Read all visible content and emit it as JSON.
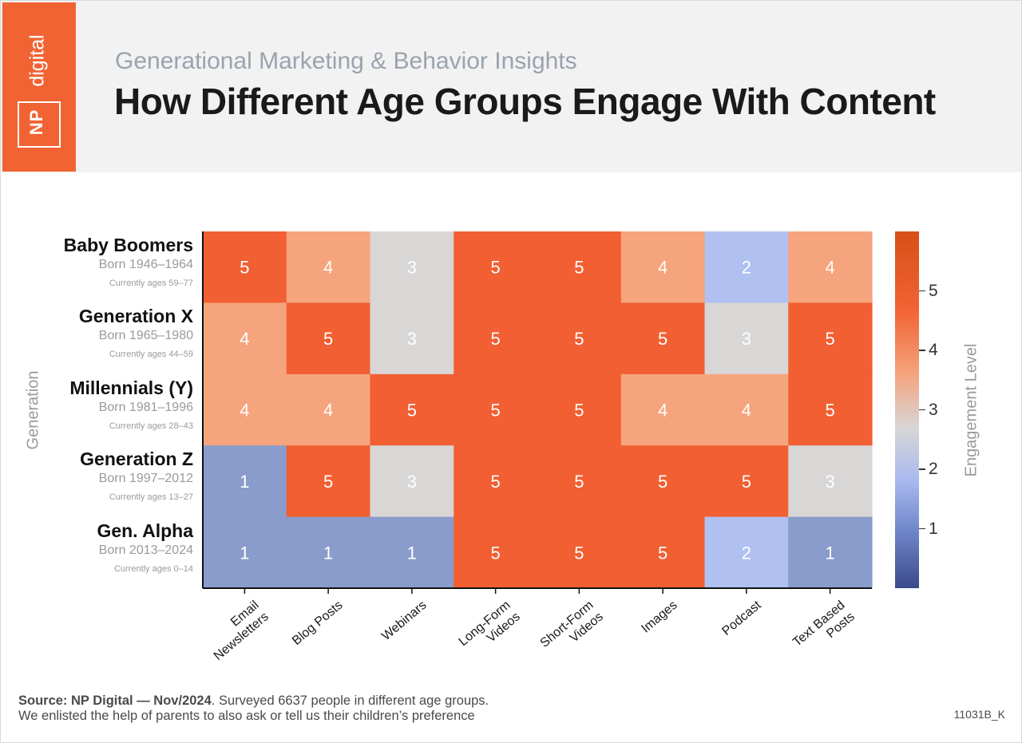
{
  "header": {
    "logo_np": "NP",
    "logo_digital": "digital",
    "subtitle": "Generational Marketing & Behavior Insights",
    "title": "How Different Age Groups Engage With Content"
  },
  "chart_data": {
    "type": "heatmap",
    "title": "How Different Age Groups Engage With Content",
    "ylabel": "Generation",
    "colorbar_label": "Engagement Level",
    "colorbar_ticks": [
      "1",
      "2",
      "3",
      "4",
      "5"
    ],
    "colorbar_range": [
      0,
      6
    ],
    "columns": [
      "Email Newsletters",
      "Blog Posts",
      "Webinars",
      "Long-Form Videos",
      "Short-Form Videos",
      "Images",
      "Podcast",
      "Text Based Posts"
    ],
    "column_labels": [
      [
        "Email",
        "Newsletters"
      ],
      [
        "Blog Posts"
      ],
      [
        "Webinars"
      ],
      [
        "Long-Form",
        "Videos"
      ],
      [
        "Short-Form",
        "Videos"
      ],
      [
        "Images"
      ],
      [
        "Podcast"
      ],
      [
        "Text Based",
        "Posts"
      ]
    ],
    "rows": [
      {
        "name": "Baby Boomers",
        "born": "Born 1946–1964",
        "ages": "Currently ages 59–77",
        "values": [
          5,
          4,
          3,
          5,
          5,
          4,
          2,
          4
        ]
      },
      {
        "name": "Generation X",
        "born": "Born 1965–1980",
        "ages": "Currently ages 44–59",
        "values": [
          4,
          5,
          3,
          5,
          5,
          5,
          3,
          5
        ]
      },
      {
        "name": "Millennials (Y)",
        "born": "Born 1981–1996",
        "ages": "Currently ages 28–43",
        "values": [
          4,
          4,
          5,
          5,
          5,
          4,
          4,
          5
        ]
      },
      {
        "name": "Generation Z",
        "born": "Born 1997–2012",
        "ages": "Currently ages 13–27",
        "values": [
          1,
          5,
          3,
          5,
          5,
          5,
          5,
          3
        ]
      },
      {
        "name": "Gen. Alpha",
        "born": "Born 2013–2024",
        "ages": "Currently ages 0–14",
        "values": [
          1,
          1,
          1,
          5,
          5,
          5,
          2,
          1
        ]
      }
    ],
    "level_colors": {
      "1": "#8a9ccb",
      "2": "#b0c0f0",
      "3": "#d9d6d6",
      "4": "#f6a47e",
      "5": "#f15f32"
    }
  },
  "footer": {
    "source_bold": "Source:  NP Digital — Nov/2024",
    "source_rest": ". Surveyed 6637 people in different age groups.",
    "source_line2": "We enlisted the help of parents to also ask or tell us their children’s preference",
    "code": "11031B_K"
  }
}
